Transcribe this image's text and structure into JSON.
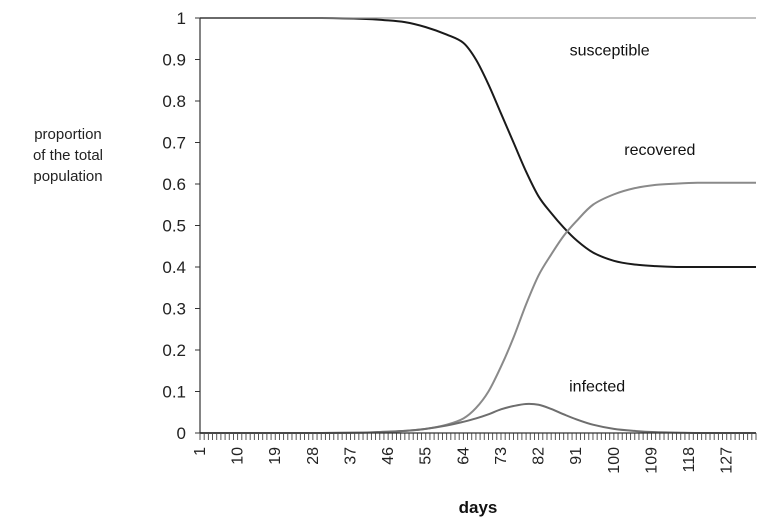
{
  "chart_data": {
    "type": "line",
    "title": "",
    "xlabel": "days",
    "ylabel_lines": [
      "proportion",
      "of the total",
      "population"
    ],
    "xlim": [
      1,
      134
    ],
    "ylim": [
      0,
      1
    ],
    "y_ticks": [
      0,
      0.1,
      0.2,
      0.3,
      0.4,
      0.5,
      0.6,
      0.7,
      0.8,
      0.9,
      1
    ],
    "y_tick_labels": [
      "0",
      "0.1",
      "0.2",
      "0.3",
      "0.4",
      "0.5",
      "0.6",
      "0.7",
      "0.8",
      "0.9",
      "1"
    ],
    "x_tick_labels": [
      "1",
      "10",
      "19",
      "28",
      "37",
      "46",
      "55",
      "64",
      "73",
      "82",
      "91",
      "100",
      "109",
      "118",
      "127"
    ],
    "x_tick_values": [
      1,
      10,
      19,
      28,
      37,
      46,
      55,
      64,
      73,
      82,
      91,
      100,
      109,
      118,
      127
    ],
    "grid": false,
    "legend": "none",
    "series": [
      {
        "name": "susceptible",
        "color": "#1a1a1a",
        "x": [
          1,
          10,
          20,
          30,
          40,
          45,
          50,
          55,
          60,
          64,
          67,
          70,
          73,
          76,
          79,
          82,
          85,
          88,
          91,
          95,
          100,
          105,
          110,
          115,
          120,
          125,
          130,
          134
        ],
        "y": [
          1.0,
          1.0,
          1.0,
          1.0,
          0.998,
          0.995,
          0.99,
          0.978,
          0.96,
          0.94,
          0.9,
          0.84,
          0.77,
          0.7,
          0.63,
          0.57,
          0.53,
          0.495,
          0.465,
          0.435,
          0.415,
          0.406,
          0.402,
          0.4,
          0.4,
          0.4,
          0.4,
          0.4
        ],
        "label_x": 99,
        "label_y": 0.91
      },
      {
        "name": "recovered",
        "color": "#8a8a8a",
        "x": [
          1,
          10,
          20,
          30,
          40,
          45,
          50,
          55,
          60,
          64,
          67,
          70,
          73,
          76,
          79,
          82,
          85,
          88,
          91,
          95,
          100,
          105,
          110,
          115,
          120,
          125,
          130,
          134
        ],
        "y": [
          0,
          0,
          0,
          0,
          0.001,
          0.002,
          0.005,
          0.01,
          0.02,
          0.035,
          0.06,
          0.1,
          0.16,
          0.23,
          0.31,
          0.38,
          0.43,
          0.475,
          0.51,
          0.55,
          0.575,
          0.59,
          0.598,
          0.601,
          0.603,
          0.603,
          0.603,
          0.603
        ],
        "label_x": 111,
        "label_y": 0.67
      },
      {
        "name": "infected",
        "color": "#6e6e6e",
        "x": [
          1,
          10,
          20,
          30,
          40,
          45,
          50,
          55,
          60,
          64,
          67,
          70,
          73,
          76,
          79,
          82,
          85,
          88,
          91,
          95,
          100,
          105,
          110,
          115,
          120,
          125,
          130,
          134
        ],
        "y": [
          0,
          0,
          0,
          0,
          0.001,
          0.003,
          0.005,
          0.01,
          0.018,
          0.027,
          0.035,
          0.045,
          0.057,
          0.065,
          0.07,
          0.068,
          0.058,
          0.045,
          0.033,
          0.02,
          0.01,
          0.005,
          0.002,
          0.001,
          0,
          0,
          0,
          0
        ],
        "label_x": 96,
        "label_y": 0.1
      }
    ]
  }
}
